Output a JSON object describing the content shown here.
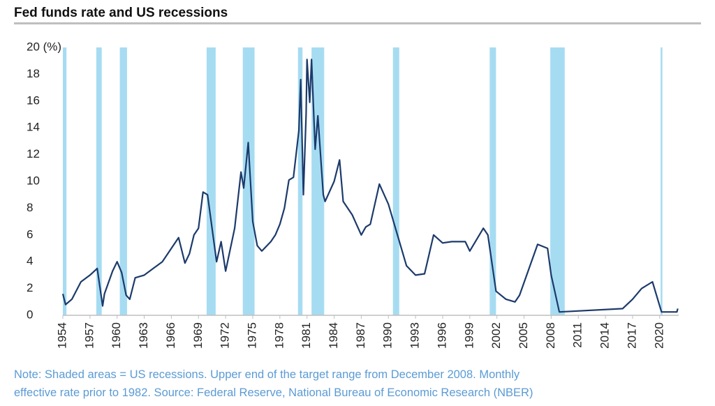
{
  "chart_data": {
    "type": "line",
    "title": "Fed funds rate and US recessions",
    "note": [
      "Note: Shaded areas = US recessions.  Upper end of the target range from December 2008. Monthly",
      "effective rate prior to 1982. Source: Federal Reserve, National Bureau of Economic Research (NBER)"
    ],
    "xlim": [
      1954,
      2022.1
    ],
    "xticks": [
      1954,
      1957,
      1960,
      1963,
      1966,
      1969,
      1972,
      1975,
      1978,
      1981,
      1984,
      1987,
      1990,
      1993,
      1996,
      1999,
      2002,
      2005,
      2008,
      2011,
      2014,
      2017,
      2020
    ],
    "ylim": [
      0,
      20
    ],
    "yticks": [
      0,
      2,
      4,
      6,
      8,
      10,
      12,
      14,
      16,
      18,
      {
        "value": 20,
        "label": "20 (%)"
      }
    ],
    "recession_color": "#a6dcf2",
    "recessions": [
      [
        1953.6,
        1954.4
      ],
      [
        1957.7,
        1958.3
      ],
      [
        1960.3,
        1961.1
      ],
      [
        1969.9,
        1970.9
      ],
      [
        1973.9,
        1975.2
      ],
      [
        1980.0,
        1980.5
      ],
      [
        1981.5,
        1982.9
      ],
      [
        1990.5,
        1991.2
      ],
      [
        2001.2,
        2001.9
      ],
      [
        2007.9,
        2009.5
      ],
      [
        2020.1,
        2020.3
      ]
    ],
    "x": [
      1954.0,
      1954.3,
      1955.0,
      1956.0,
      1957.0,
      1957.8,
      1958.4,
      1958.6,
      1959.5,
      1960.0,
      1960.5,
      1961.0,
      1961.4,
      1962.0,
      1963.0,
      1964.0,
      1965.0,
      1966.0,
      1966.8,
      1967.5,
      1968.0,
      1968.5,
      1969.0,
      1969.5,
      1970.0,
      1971.0,
      1971.5,
      1972.0,
      1973.0,
      1973.7,
      1974.0,
      1974.5,
      1975.0,
      1975.5,
      1976.0,
      1977.0,
      1977.5,
      1978.0,
      1978.5,
      1979.0,
      1979.5,
      1980.1,
      1980.3,
      1980.6,
      1980.9,
      1981.0,
      1981.3,
      1981.5,
      1981.9,
      1982.2,
      1982.8,
      1983.0,
      1984.0,
      1984.6,
      1985.0,
      1986.0,
      1987.0,
      1987.5,
      1988.0,
      1989.0,
      1990.0,
      1991.0,
      1992.0,
      1993.0,
      1994.0,
      1995.0,
      1996.0,
      1997.0,
      1998.5,
      1999.0,
      2000.5,
      2001.0,
      2001.9,
      2003.0,
      2004.0,
      2004.5,
      2006.5,
      2007.6,
      2008.0,
      2008.9,
      2015.9,
      2017.0,
      2018.0,
      2019.2,
      2020.2,
      2021.9,
      2022.0
    ],
    "series": [
      {
        "name": "Fed funds rate",
        "color": "#1c3a6b",
        "values": [
          1.6,
          0.8,
          1.2,
          2.5,
          3.0,
          3.5,
          0.7,
          1.6,
          3.3,
          4.0,
          3.2,
          1.5,
          1.2,
          2.8,
          3.0,
          3.5,
          4.0,
          5.0,
          5.8,
          3.9,
          4.6,
          6.0,
          6.5,
          9.2,
          9.0,
          4.0,
          5.5,
          3.3,
          6.5,
          10.7,
          9.5,
          12.9,
          7.0,
          5.2,
          4.8,
          5.5,
          6.0,
          6.8,
          8.0,
          10.1,
          10.3,
          13.8,
          17.6,
          9.0,
          15.0,
          19.1,
          15.9,
          19.1,
          12.4,
          14.9,
          9.0,
          8.5,
          10.0,
          11.6,
          8.5,
          7.5,
          6.0,
          6.6,
          6.8,
          9.8,
          8.3,
          6.0,
          3.7,
          3.0,
          3.1,
          6.0,
          5.4,
          5.5,
          5.5,
          4.8,
          6.5,
          6.0,
          1.8,
          1.2,
          1.0,
          1.5,
          5.3,
          5.0,
          3.0,
          0.25,
          0.5,
          1.2,
          2.0,
          2.5,
          0.25,
          0.25,
          0.5
        ]
      }
    ]
  }
}
